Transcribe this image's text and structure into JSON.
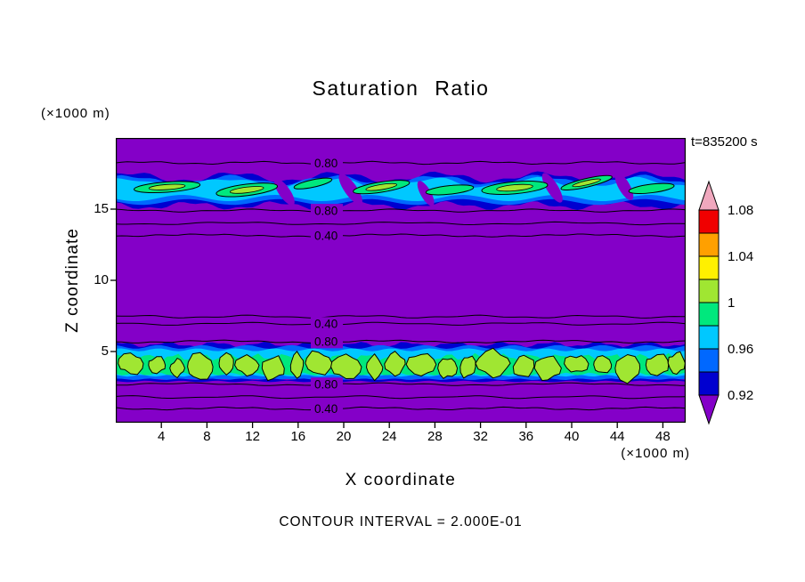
{
  "page": {
    "background": "#FFFFFF"
  },
  "chart_data": {
    "type": "heatmap",
    "subtype": "filled-contour",
    "title": "Saturation Ratio",
    "time_label": "t=835200 s",
    "xlabel": "X coordinate",
    "ylabel": "Z coordinate",
    "x_units_label": "(×1000 m)",
    "y_units_label": "(×1000 m)",
    "contour_interval_label": "CONTOUR INTERVAL = 2.000E-01",
    "x_range": [
      0,
      50
    ],
    "z_range": [
      0,
      20
    ],
    "x_ticks": [
      "4",
      "8",
      "12",
      "16",
      "20",
      "24",
      "28",
      "32",
      "36",
      "40",
      "44",
      "48"
    ],
    "y_ticks": [
      "5",
      "10",
      "15"
    ],
    "colors": {
      "purple": "#8400C8",
      "navy": "#0000D0",
      "blue": "#0068FF",
      "cyan": "#00C8FF",
      "green": "#00E87D",
      "yellow_green": "#A0E632",
      "yellow": "#FFF000",
      "orange": "#FFA000",
      "red": "#F00000",
      "pink": "#F0A8BE"
    },
    "colorbar": {
      "bands_top_to_bottom": [
        "pink",
        "red",
        "orange",
        "yellow",
        "yellow_green",
        "green",
        "cyan",
        "blue",
        "navy",
        "purple"
      ],
      "tick_labels": [
        "1.08",
        "1.04",
        "1",
        "0.96",
        "0.92"
      ]
    },
    "contour_lines": [
      {
        "z": 18.25,
        "label": "0.80"
      },
      {
        "z": 14.9,
        "label": "0.80"
      },
      {
        "z": 14.0,
        "label": ""
      },
      {
        "z": 13.15,
        "label": "0.40"
      },
      {
        "z": 7.45,
        "label": ""
      },
      {
        "z": 6.95,
        "label": "0.40"
      },
      {
        "z": 5.7,
        "label": "0.80"
      },
      {
        "z": 2.7,
        "label": "0.80"
      },
      {
        "z": 1.8,
        "label": ""
      },
      {
        "z": 1.0,
        "label": "0.40"
      }
    ],
    "cloud_bands": {
      "upper": {
        "description": "wavy stratiform cloud layer, saturation ratio near 1",
        "z_bottom": 15.2,
        "z_top": 17.4,
        "lenses": [
          [
            4.5,
            16.55,
            2.9,
            0.36,
            -4,
            1
          ],
          [
            11.5,
            16.35,
            2.7,
            0.4,
            -7,
            1
          ],
          [
            17.3,
            16.8,
            1.7,
            0.26,
            -12,
            0
          ],
          [
            23.3,
            16.55,
            2.5,
            0.36,
            -9,
            1
          ],
          [
            29.3,
            16.35,
            2.1,
            0.3,
            -6,
            0
          ],
          [
            35.0,
            16.5,
            2.9,
            0.42,
            -5,
            1
          ],
          [
            41.3,
            16.85,
            2.3,
            0.3,
            -13,
            1
          ],
          [
            47.0,
            16.45,
            2.0,
            0.3,
            -7,
            0
          ]
        ],
        "gaps": [
          [
            14.8,
            16.2,
            0.5,
            1.1,
            35
          ],
          [
            20.6,
            16.4,
            0.55,
            1.3,
            35
          ],
          [
            27.2,
            16.1,
            0.45,
            1.0,
            30
          ],
          [
            38.3,
            16.5,
            0.5,
            1.2,
            32
          ],
          [
            44.6,
            16.6,
            0.5,
            1.1,
            30
          ]
        ]
      },
      "lower": {
        "description": "broken cumulus cloud field, saturation ratio near 1",
        "z_bottom": 3.1,
        "z_top": 5.6,
        "cells": [
          [
            1.3,
            1.1,
            0
          ],
          [
            3.6,
            0.8,
            0
          ],
          [
            5.4,
            0.6,
            0
          ],
          [
            7.4,
            1.2,
            1
          ],
          [
            9.7,
            0.7,
            0
          ],
          [
            11.5,
            1.0,
            0
          ],
          [
            13.8,
            1.0,
            0
          ],
          [
            15.9,
            0.6,
            0
          ],
          [
            17.8,
            1.1,
            0
          ],
          [
            20.2,
            1.3,
            1
          ],
          [
            22.7,
            0.7,
            0
          ],
          [
            24.5,
            0.9,
            0
          ],
          [
            26.8,
            1.2,
            0
          ],
          [
            29.1,
            0.8,
            0
          ],
          [
            30.9,
            0.7,
            0
          ],
          [
            33.1,
            1.4,
            1
          ],
          [
            35.8,
            0.9,
            0
          ],
          [
            37.9,
            1.1,
            0
          ],
          [
            40.4,
            1.0,
            0
          ],
          [
            42.7,
            0.8,
            0
          ],
          [
            44.9,
            1.2,
            1
          ],
          [
            47.5,
            1.1,
            0
          ],
          [
            49.2,
            0.7,
            0
          ]
        ]
      }
    }
  }
}
